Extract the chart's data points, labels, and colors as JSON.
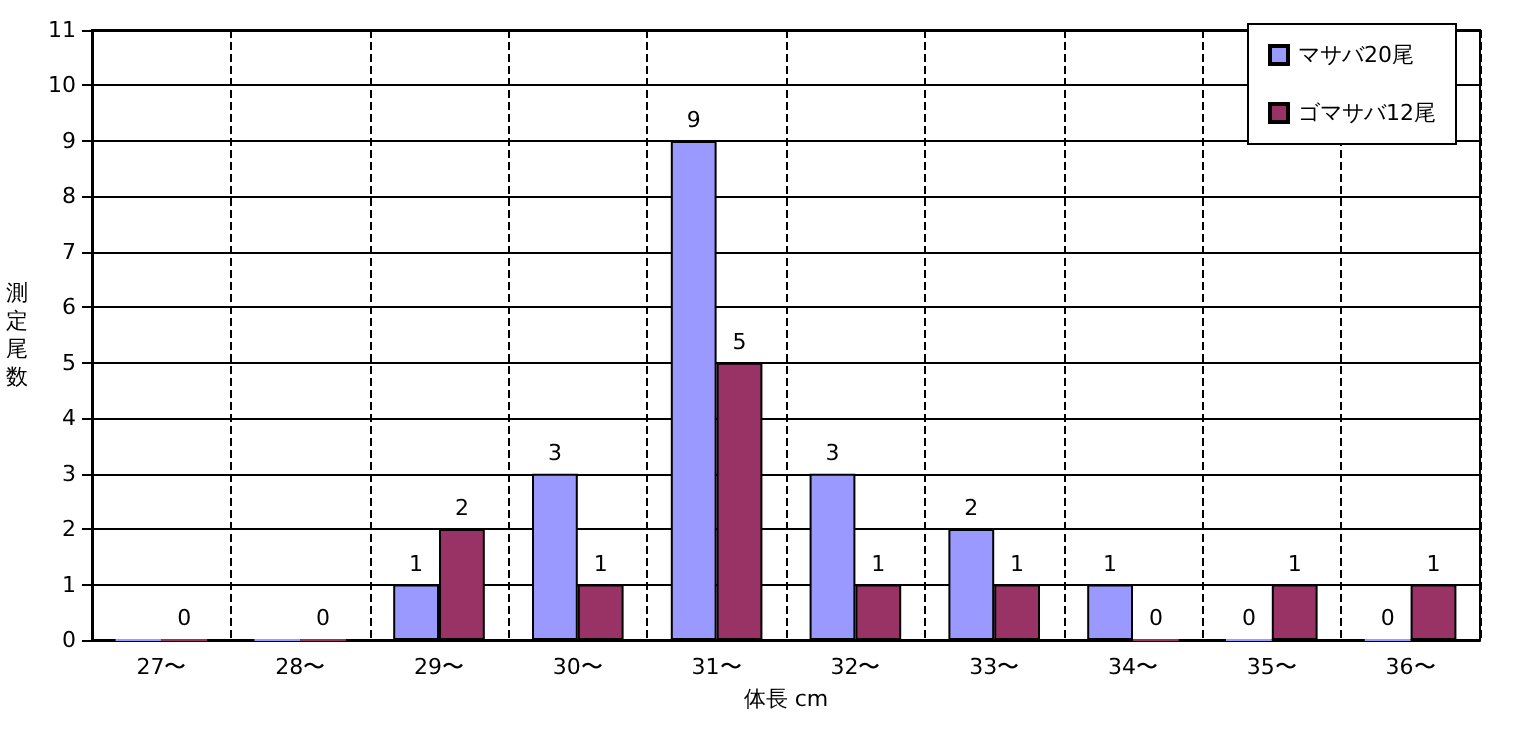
{
  "chart_data": {
    "type": "bar",
    "xlabel": "体長 cm",
    "ylabel": "測定尾数",
    "categories": [
      "27〜",
      "28〜",
      "29〜",
      "30〜",
      "31〜",
      "32〜",
      "33〜",
      "34〜",
      "35〜",
      "36〜"
    ],
    "series": [
      {
        "name": "マサバ20尾",
        "color": "#9999ff",
        "values": [
          0,
          0,
          1,
          3,
          9,
          3,
          2,
          1,
          0,
          0
        ],
        "value_labels": [
          null,
          null,
          "1",
          "3",
          "9",
          "3",
          "2",
          "1",
          "0",
          "0"
        ]
      },
      {
        "name": "ゴマサバ12尾",
        "color": "#993366",
        "values": [
          0,
          0,
          2,
          1,
          5,
          1,
          1,
          0,
          1,
          1
        ],
        "value_labels": [
          "0",
          "0",
          "2",
          "1",
          "5",
          "1",
          "1",
          "0",
          "1",
          "1"
        ]
      }
    ],
    "ylim": [
      0,
      11
    ],
    "yticks": [
      0,
      1,
      2,
      3,
      4,
      5,
      6,
      7,
      8,
      9,
      10,
      11
    ],
    "grid": true,
    "legend": "top right"
  }
}
